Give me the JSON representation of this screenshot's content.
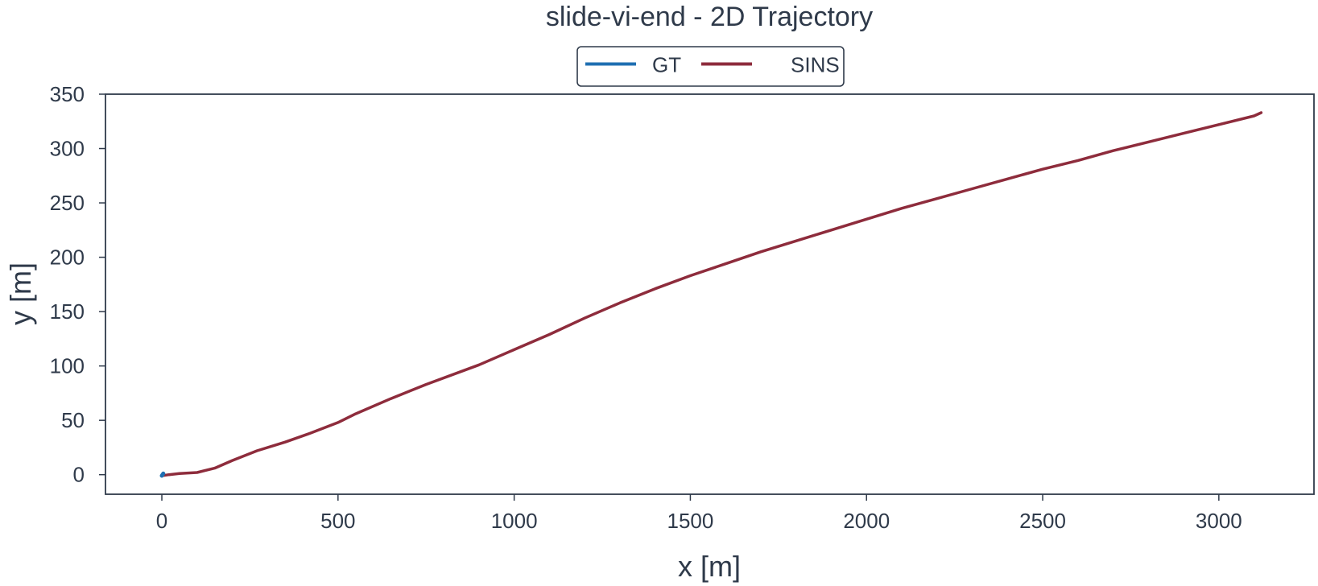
{
  "chart_data": {
    "type": "line",
    "title": "slide-vi-end - 2D Trajectory",
    "xlabel": "x [m]",
    "ylabel": "y [m]",
    "xlim": [
      -160,
      3270
    ],
    "ylim": [
      -18,
      350
    ],
    "x_ticks": [
      0,
      500,
      1000,
      1500,
      2000,
      2500,
      3000
    ],
    "y_ticks": [
      0,
      50,
      100,
      150,
      200,
      250,
      300,
      350
    ],
    "x_tick_labels": [
      "0",
      "500",
      "1000",
      "1500",
      "2000",
      "2500",
      "3000"
    ],
    "y_tick_labels": [
      "0",
      "50",
      "100",
      "150",
      "200",
      "250",
      "300",
      "350"
    ],
    "grid": false,
    "legend_position": "top-center, above the plot",
    "series": [
      {
        "name": "GT",
        "color": "#1f6fb2",
        "x": [
          0,
          2,
          4
        ],
        "y": [
          -1,
          0,
          1
        ]
      },
      {
        "name": "SINS",
        "color": "#8e2c3c",
        "x": [
          0,
          20,
          50,
          100,
          150,
          200,
          270,
          350,
          420,
          500,
          550,
          650,
          750,
          900,
          1000,
          1100,
          1200,
          1300,
          1400,
          1500,
          1600,
          1700,
          1800,
          1900,
          2000,
          2100,
          2200,
          2300,
          2400,
          2500,
          2600,
          2700,
          2800,
          2900,
          3000,
          3100,
          3120
        ],
        "y": [
          -1,
          0,
          1,
          2,
          6,
          13,
          22,
          30,
          38,
          48,
          56,
          70,
          83,
          101,
          115,
          129,
          144,
          158,
          171,
          183,
          194,
          205,
          215,
          225,
          235,
          245,
          254,
          263,
          272,
          281,
          289,
          298,
          306,
          314,
          322,
          330,
          333
        ]
      }
    ]
  }
}
